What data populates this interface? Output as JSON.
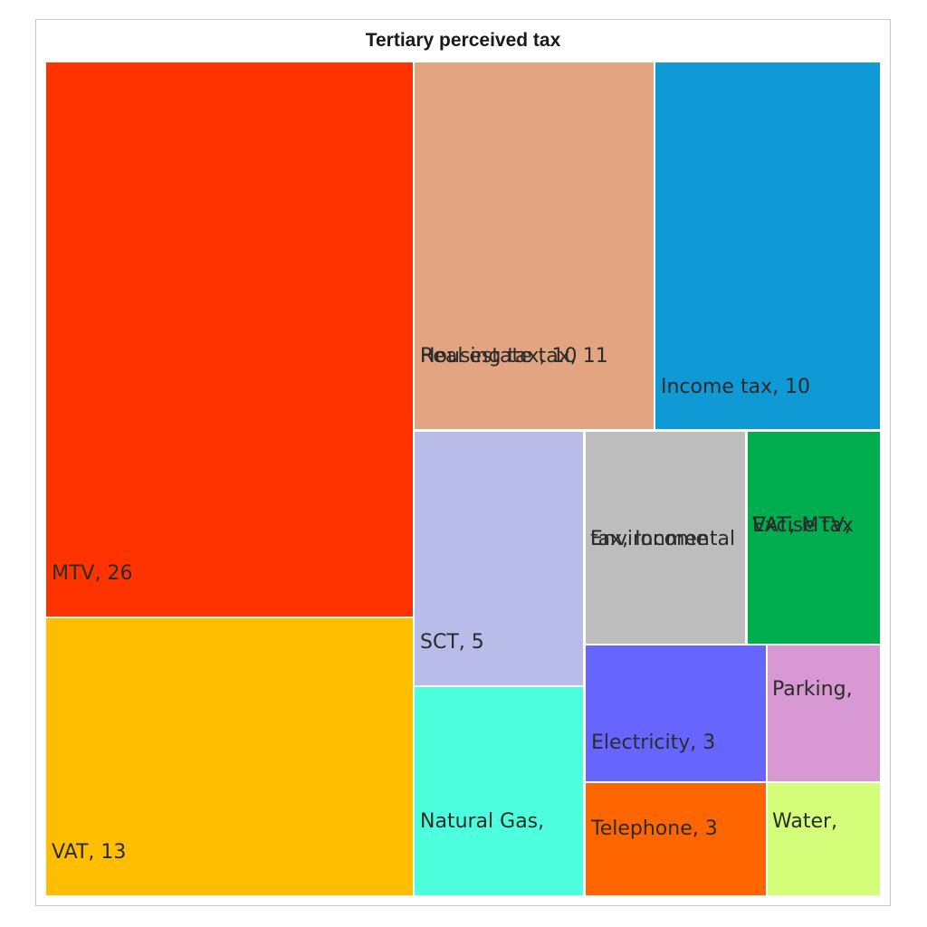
{
  "chart_data": {
    "type": "treemap",
    "title": "Tertiary perceived tax",
    "items": [
      {
        "label": "MTV, 26",
        "value": 26,
        "color": "#ff3300"
      },
      {
        "label": "VAT, 13",
        "value": 13,
        "color": "#ffbf00"
      },
      {
        "label": "Real estate tax, 11",
        "value": 11,
        "color": "#e3a482"
      },
      {
        "label": "Housing tax, 10",
        "value": 10,
        "color": "#e3a482"
      },
      {
        "label": "Income tax, 10",
        "value": 10,
        "color": "#0f9ad6"
      },
      {
        "label": "SCT, 5",
        "value": 5,
        "color": "#b9bbe8"
      },
      {
        "label": "Natural Gas,",
        "value": 4,
        "color": "#4dffdc"
      },
      {
        "label": "Environmental",
        "value": 4,
        "color": "#bdbdbd"
      },
      {
        "label": "tax, Income",
        "value": 4,
        "color": "#bdbdbd"
      },
      {
        "label": "VAT, MTV,",
        "value": 4,
        "color": "#00ad4f"
      },
      {
        "label": "Excise tax",
        "value": 4,
        "color": "#00ad4f"
      },
      {
        "label": "Electricity, 3",
        "value": 3,
        "color": "#6666ff"
      },
      {
        "label": "Parking,",
        "value": 2,
        "color": "#d898d4"
      },
      {
        "label": "Telephone, 3",
        "value": 3,
        "color": "#ff6600"
      },
      {
        "label": "Water,",
        "value": 2,
        "color": "#d4fd7a"
      }
    ]
  }
}
